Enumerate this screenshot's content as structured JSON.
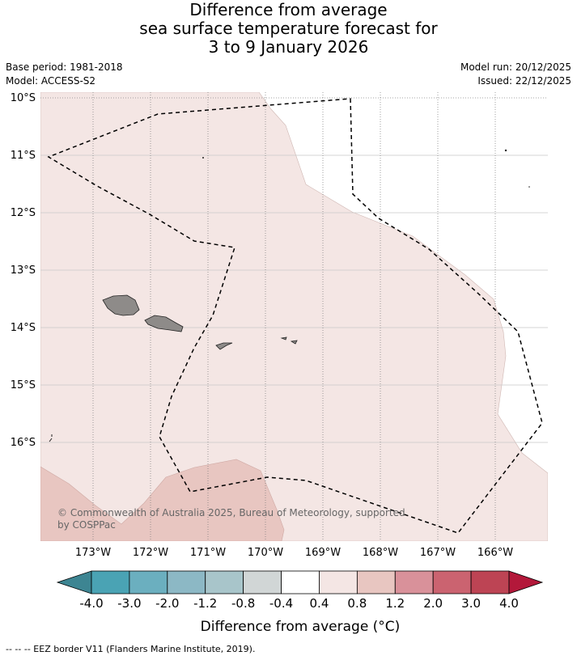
{
  "title": {
    "line1": "Difference from average",
    "line2": "sea surface temperature forecast for",
    "line3": "3 to 9 January 2026"
  },
  "meta": {
    "base_period": "Base period: 1981-2018",
    "model": "Model: ACCESS-S2",
    "model_run": "Model run: 20/12/2025",
    "issued": "Issued: 22/12/2025"
  },
  "map": {
    "lat_labels": [
      "10°S",
      "11°S",
      "12°S",
      "13°S",
      "14°S",
      "15°S",
      "16°S"
    ],
    "lon_labels": [
      "173°W",
      "172°W",
      "171°W",
      "170°W",
      "169°W",
      "168°W",
      "167°W",
      "166°W"
    ],
    "copyright": "© Commonwealth of Australia 2025, Bureau of Meteorology, supported",
    "copyright2": "by COSPPac",
    "colors": {
      "anom_0_4_to_0_8": "#f4e6e4",
      "anom_0_8_to_1_2": "#e8c6c1",
      "land": "#8e8b89"
    }
  },
  "colorbar": {
    "ticks": [
      "-4.0",
      "-3.0",
      "-2.0",
      "-1.2",
      "-0.8",
      "-0.4",
      "0.4",
      "0.8",
      "1.2",
      "2.0",
      "3.0",
      "4.0"
    ],
    "colors": [
      "#3d8592",
      "#4aa3b4",
      "#6bafbf",
      "#8cb8c5",
      "#a8c5ca",
      "#d1d6d6",
      "#ffffff",
      "#f4e6e4",
      "#e8c6c1",
      "#d9919a",
      "#cb6370",
      "#bd4454",
      "#b3183a"
    ],
    "label": "Difference from average (°C)"
  },
  "footer": "-- -- -- EEZ border V11 (Flanders Marine Institute, 2019)."
}
